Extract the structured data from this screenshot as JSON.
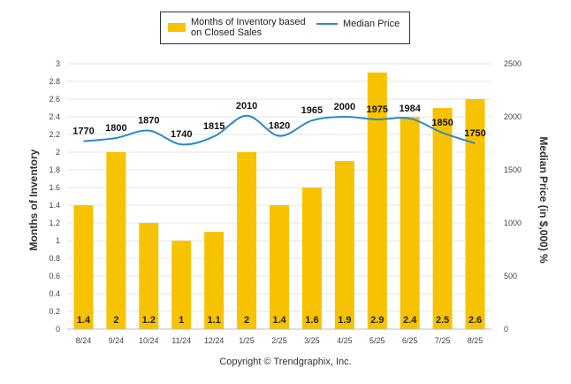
{
  "chart_data": {
    "type": "bar",
    "categories": [
      "8/24",
      "9/24",
      "10/24",
      "11/24",
      "12/24",
      "1/25",
      "2/25",
      "3/25",
      "4/25",
      "5/25",
      "6/25",
      "7/25",
      "8/25"
    ],
    "series": [
      {
        "name": "Months of Inventory based on Closed Sales",
        "type": "bar",
        "axis": "left",
        "values": [
          1.4,
          2,
          1.2,
          1,
          1.1,
          2,
          1.4,
          1.6,
          1.9,
          2.9,
          2.4,
          2.5,
          2.6
        ],
        "labels": [
          "1.4",
          "2",
          "1.2",
          "1",
          "1.1",
          "2",
          "1.4",
          "1.6",
          "1.9",
          "2.9",
          "2.4",
          "2.5",
          "2.6"
        ],
        "color": "#F7C300"
      },
      {
        "name": "Median Price",
        "type": "line",
        "axis": "right",
        "values": [
          1770,
          1800,
          1870,
          1740,
          1815,
          2010,
          1820,
          1965,
          2000,
          1975,
          1984,
          1850,
          1750
        ],
        "labels": [
          "1770",
          "1800",
          "1870",
          "1740",
          "1815",
          "2010",
          "1820",
          "1965",
          "2000",
          "1975",
          "1984",
          "1850",
          "1750"
        ],
        "color": "#2A8BC7"
      }
    ],
    "ylabel": "Months of Inventory",
    "y2label": "Median Price (in $,000) %",
    "ylim": [
      0,
      3
    ],
    "y2lim": [
      0,
      2500
    ],
    "yticks": [
      "0",
      "0.2",
      "0.4",
      "0.6",
      "0.8",
      "1",
      "1.2",
      "1.4",
      "1.6",
      "1.8",
      "2",
      "2.2",
      "2.4",
      "2.6",
      "2.8",
      "3"
    ],
    "y2ticks": [
      "0",
      "500",
      "1000",
      "1500",
      "2000",
      "2500"
    ],
    "grid": true,
    "legend_position": "top"
  },
  "legend": {
    "bar_label_line1": "Months of Inventory based",
    "bar_label_line2": "on Closed Sales",
    "line_label": "Median Price"
  },
  "footer": {
    "copyright": "Copyright © Trendgraphix, Inc."
  }
}
